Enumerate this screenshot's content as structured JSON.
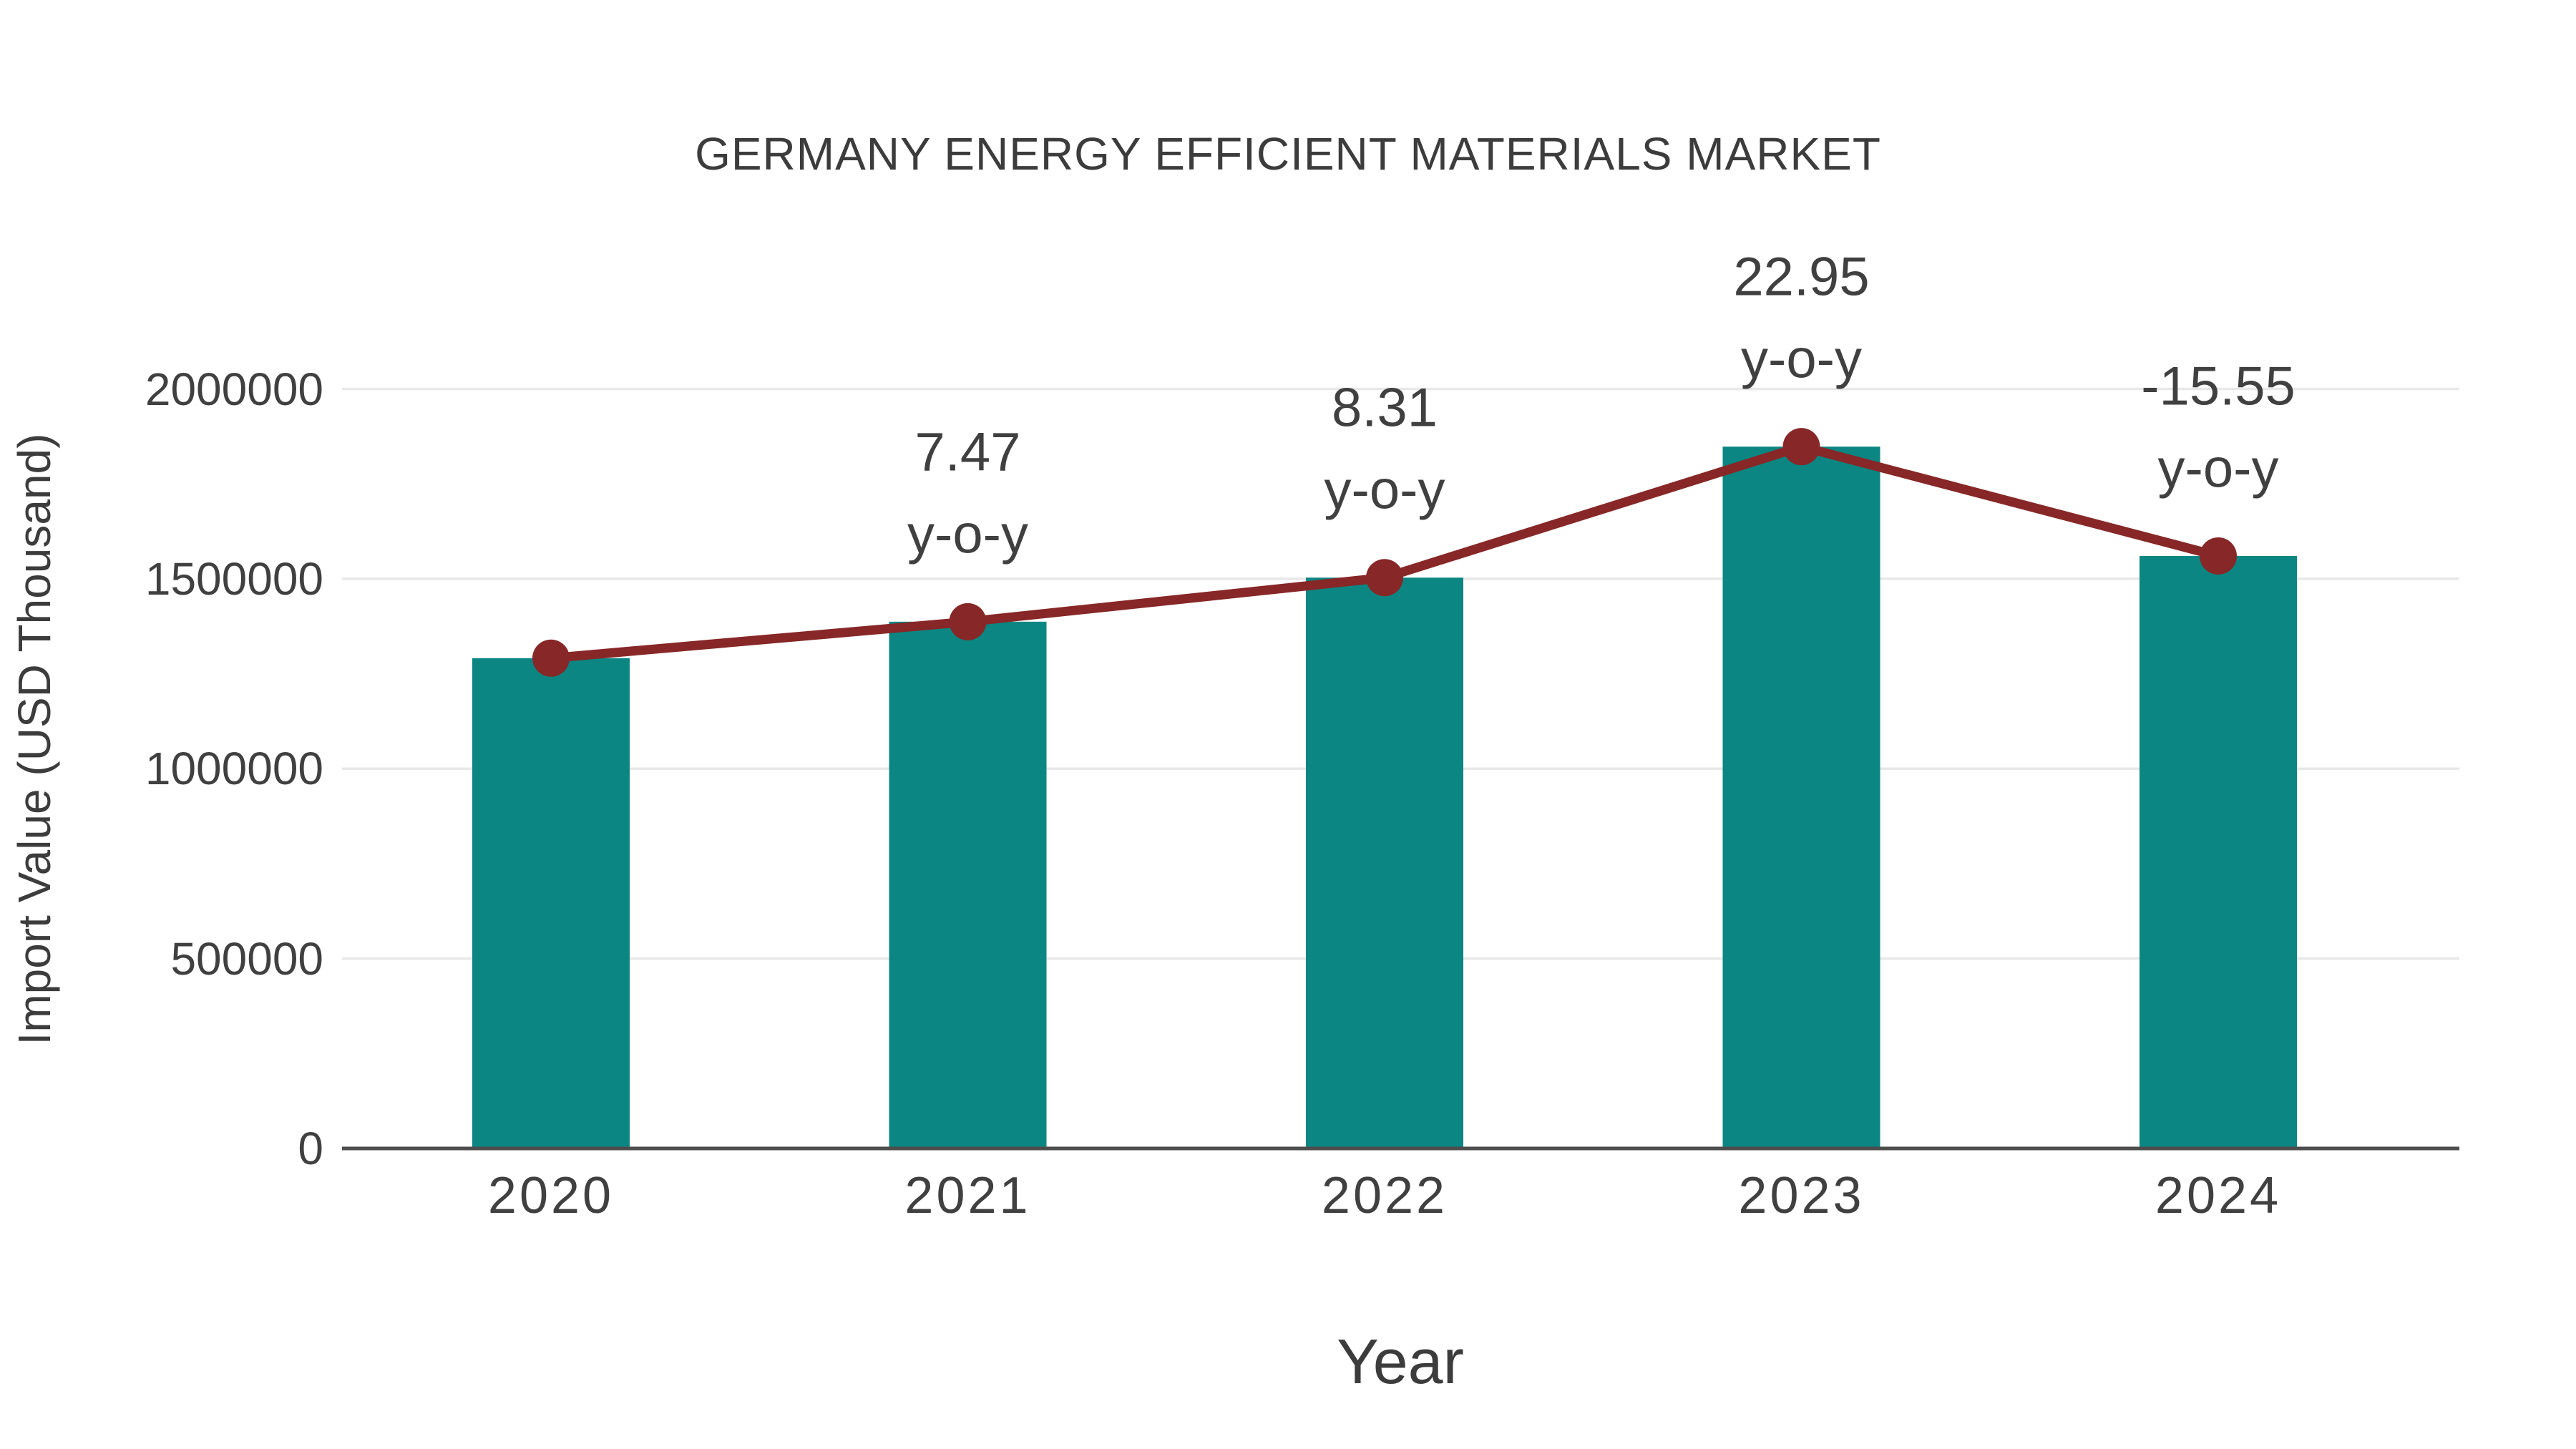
{
  "chart_data": {
    "type": "bar+line",
    "title": "GERMANY ENERGY EFFICIENT MATERIALS MARKET",
    "xlabel": "Year",
    "ylabel": "Import Value (USD Thousand)",
    "categories": [
      "2020",
      "2021",
      "2022",
      "2023",
      "2024"
    ],
    "series": [
      {
        "name": "Import Value bars",
        "type": "bar",
        "values": [
          1291000,
          1387000,
          1503000,
          1848000,
          1560000
        ]
      },
      {
        "name": "Import Value trend line",
        "type": "line",
        "values": [
          1291000,
          1387000,
          1503000,
          1848000,
          1560000
        ]
      }
    ],
    "annotations": [
      {
        "category": "2021",
        "value_label": "7.47",
        "suffix_label": "y-o-y"
      },
      {
        "category": "2022",
        "value_label": "8.31",
        "suffix_label": "y-o-y"
      },
      {
        "category": "2023",
        "value_label": "22.95",
        "suffix_label": "y-o-y"
      },
      {
        "category": "2024",
        "value_label": "-15.55",
        "suffix_label": "y-o-y"
      }
    ],
    "yticks": [
      0,
      500000,
      1000000,
      1500000,
      2000000
    ],
    "ylim": [
      0,
      2000000
    ],
    "grid": true,
    "legend": false,
    "colors": {
      "bar": "#0b8682",
      "line": "#872727",
      "marker": "#872727",
      "text": "#404040",
      "title_text": "#3c3c3c",
      "gridline": "#e8e8e8",
      "axis_line": "#4d4d4d",
      "background": "#ffffff"
    }
  }
}
